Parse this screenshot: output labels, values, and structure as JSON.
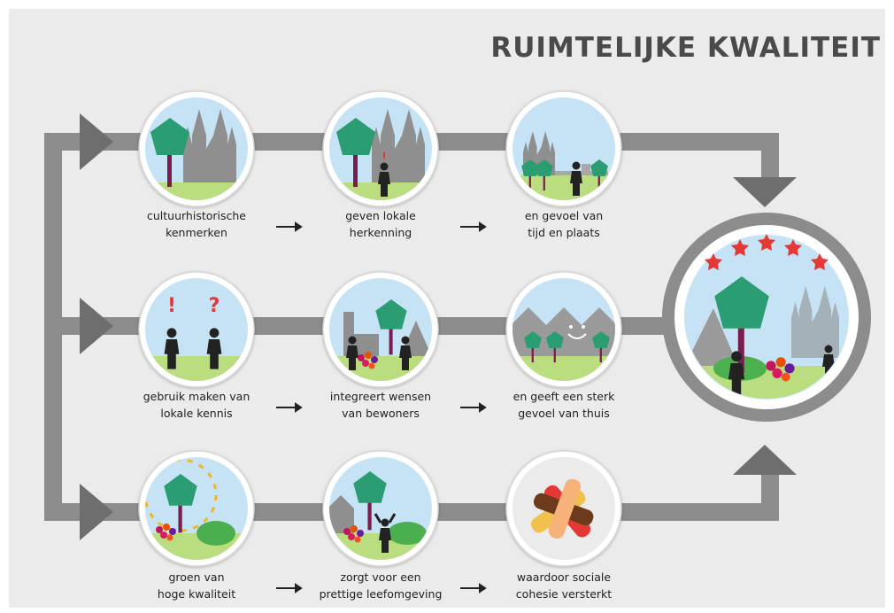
{
  "header": {
    "title": "RUIMTELIJKE KWALITEIT"
  },
  "nodes": [
    {
      "label": [
        "cultuurhistorische",
        "kenmerken"
      ]
    },
    {
      "label": [
        "geven lokale",
        "herkenning"
      ]
    },
    {
      "label": [
        "en gevoel van",
        "tijd en plaats"
      ]
    },
    {
      "label": [
        "gebruik maken van",
        "lokale kennis"
      ]
    },
    {
      "label": [
        "integreert wensen",
        "van bewoners"
      ]
    },
    {
      "label": [
        "en geeft een sterk",
        "gevoel van thuis"
      ]
    },
    {
      "label": [
        "groen van",
        "hoge kwaliteit"
      ]
    },
    {
      "label": [
        "zorgt voor een",
        "prettige leefomgeving"
      ]
    },
    {
      "label": [
        "waardoor sociale",
        "cohesie versterkt"
      ]
    }
  ]
}
